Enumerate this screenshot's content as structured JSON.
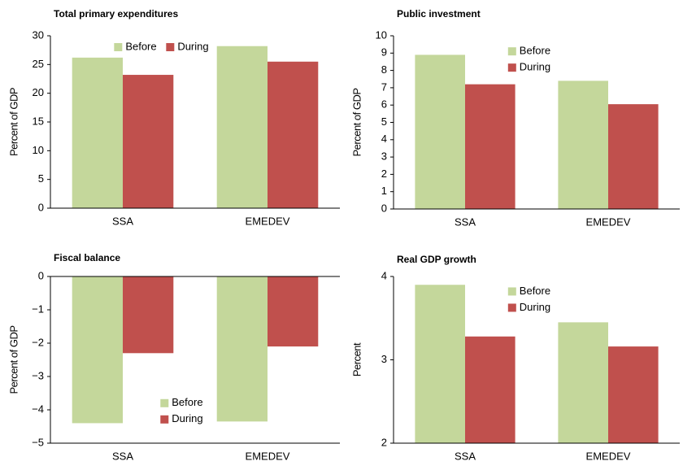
{
  "chart_data": [
    {
      "type": "bar",
      "title": "Total primary expenditures",
      "ylabel": "Percent of GDP",
      "categories": [
        "SSA",
        "EMEDEV"
      ],
      "series": [
        {
          "name": "Before",
          "color": "#c4d79b",
          "values": [
            26.2,
            28.2
          ]
        },
        {
          "name": "During",
          "color": "#c0504d",
          "values": [
            23.2,
            25.5
          ]
        }
      ],
      "ylim": [
        0,
        30
      ],
      "yticks": [
        0,
        5,
        10,
        15,
        20,
        25,
        30
      ],
      "legend": "top"
    },
    {
      "type": "bar",
      "title": "Public investment",
      "ylabel": "Percent of GDP",
      "categories": [
        "SSA",
        "EMEDEV"
      ],
      "series": [
        {
          "name": "Before",
          "color": "#c4d79b",
          "values": [
            8.9,
            7.4
          ]
        },
        {
          "name": "During",
          "color": "#c0504d",
          "values": [
            7.2,
            6.05
          ]
        }
      ],
      "ylim": [
        0,
        10
      ],
      "yticks": [
        0,
        1,
        2,
        3,
        4,
        5,
        6,
        7,
        8,
        9,
        10
      ],
      "legend": "upper-center"
    },
    {
      "type": "bar",
      "title": "Fiscal balance",
      "ylabel": "Percent of GDP",
      "categories": [
        "SSA",
        "EMEDEV"
      ],
      "series": [
        {
          "name": "Before",
          "color": "#c4d79b",
          "values": [
            -4.4,
            -4.35
          ]
        },
        {
          "name": "During",
          "color": "#c0504d",
          "values": [
            -2.3,
            -2.1
          ]
        }
      ],
      "ylim": [
        -5,
        0
      ],
      "yticks": [
        0,
        {
          "value": -1,
          "label": "−1"
        },
        {
          "value": -2,
          "label": "−2"
        },
        {
          "value": -3,
          "label": "−3"
        },
        {
          "value": -4,
          "label": "−4"
        },
        {
          "value": -5,
          "label": "−5"
        }
      ],
      "legend": "lower-center"
    },
    {
      "type": "bar",
      "title": "Real GDP growth",
      "ylabel": "Percent",
      "categories": [
        "SSA",
        "EMEDEV"
      ],
      "series": [
        {
          "name": "Before",
          "color": "#c4d79b",
          "values": [
            3.9,
            3.45
          ]
        },
        {
          "name": "During",
          "color": "#c0504d",
          "values": [
            3.28,
            3.16
          ]
        }
      ],
      "ylim": [
        2,
        4
      ],
      "yticks": [
        2,
        3,
        4
      ],
      "legend": "upper-center"
    }
  ]
}
